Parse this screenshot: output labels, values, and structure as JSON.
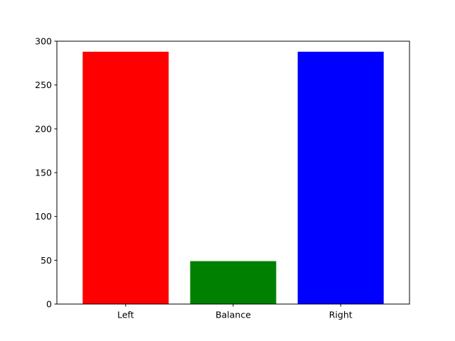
{
  "chart_data": {
    "type": "bar",
    "title": "",
    "xlabel": "",
    "ylabel": "",
    "categories": [
      "Left",
      "Balance",
      "Right"
    ],
    "values": [
      288,
      49,
      288
    ],
    "colors": [
      "#ff0000",
      "#008000",
      "#0000ff"
    ],
    "ylim": [
      0,
      300
    ],
    "yticks": [
      0,
      50,
      100,
      150,
      200,
      250,
      300
    ],
    "grid": false,
    "legend": "none"
  }
}
